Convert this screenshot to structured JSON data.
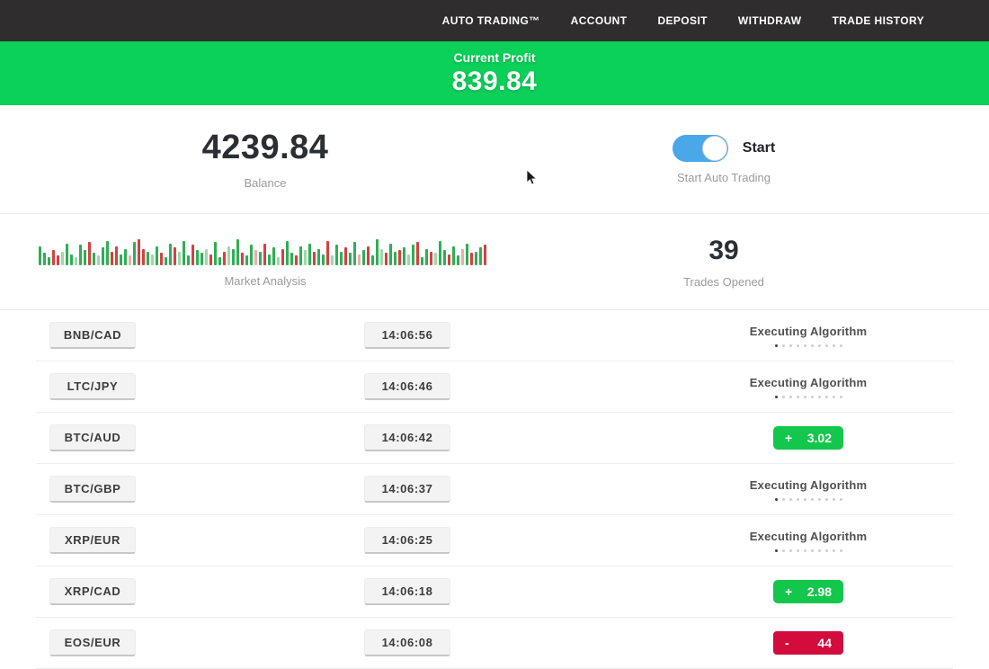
{
  "nav": {
    "items": [
      {
        "label": "AUTO TRADING™"
      },
      {
        "label": "ACCOUNT"
      },
      {
        "label": "DEPOSIT"
      },
      {
        "label": "WITHDRAW"
      },
      {
        "label": "TRADE HISTORY"
      }
    ]
  },
  "profit_banner": {
    "label": "Current Profit",
    "value": "839.84",
    "color": "#0bd05a"
  },
  "stats": {
    "balance": {
      "value": "4239.84",
      "label": "Balance"
    },
    "auto_trading": {
      "toggle_state": "on",
      "toggle_label": "Start",
      "label": "Start Auto Trading",
      "toggle_color": "#4aa7e8"
    },
    "market_analysis": {
      "label": "Market Analysis"
    },
    "trades_opened": {
      "value": "39",
      "label": "Trades Opened"
    }
  },
  "chart_data": {
    "type": "bar",
    "title": "Market Analysis",
    "description": "decorative market ticker bars, green=up red=down, relative heights 0-1",
    "colors": {
      "g": "#2fae54",
      "r": "#d44040",
      "G": "#9ed8ab",
      "R": "#eeaab2"
    },
    "bars": [
      [
        0.7,
        "g"
      ],
      [
        0.45,
        "g"
      ],
      [
        0.3,
        "g"
      ],
      [
        0.55,
        "r"
      ],
      [
        0.35,
        "r"
      ],
      [
        0.5,
        "G"
      ],
      [
        0.8,
        "g"
      ],
      [
        0.4,
        "g"
      ],
      [
        0.3,
        "G"
      ],
      [
        0.75,
        "g"
      ],
      [
        0.55,
        "g"
      ],
      [
        0.85,
        "r"
      ],
      [
        0.45,
        "g"
      ],
      [
        0.35,
        "G"
      ],
      [
        0.65,
        "g"
      ],
      [
        0.9,
        "g"
      ],
      [
        0.5,
        "r"
      ],
      [
        0.7,
        "r"
      ],
      [
        0.4,
        "g"
      ],
      [
        0.6,
        "g"
      ],
      [
        0.35,
        "R"
      ],
      [
        0.85,
        "g"
      ],
      [
        0.95,
        "r"
      ],
      [
        0.6,
        "r"
      ],
      [
        0.5,
        "g"
      ],
      [
        0.4,
        "G"
      ],
      [
        0.7,
        "g"
      ],
      [
        0.45,
        "r"
      ],
      [
        0.3,
        "g"
      ],
      [
        0.8,
        "g"
      ],
      [
        0.65,
        "r"
      ],
      [
        0.5,
        "G"
      ],
      [
        0.9,
        "g"
      ],
      [
        0.35,
        "g"
      ],
      [
        0.75,
        "r"
      ],
      [
        0.55,
        "g"
      ],
      [
        0.45,
        "g"
      ],
      [
        0.6,
        "G"
      ],
      [
        0.4,
        "r"
      ],
      [
        0.85,
        "g"
      ],
      [
        0.3,
        "g"
      ],
      [
        0.5,
        "r"
      ],
      [
        0.7,
        "G"
      ],
      [
        0.6,
        "g"
      ],
      [
        0.95,
        "g"
      ],
      [
        0.45,
        "r"
      ],
      [
        0.35,
        "g"
      ],
      [
        0.75,
        "g"
      ],
      [
        0.55,
        "R"
      ],
      [
        0.5,
        "g"
      ],
      [
        0.8,
        "r"
      ],
      [
        0.4,
        "g"
      ],
      [
        0.65,
        "g"
      ],
      [
        0.3,
        "G"
      ],
      [
        0.6,
        "r"
      ],
      [
        0.9,
        "g"
      ],
      [
        0.45,
        "g"
      ],
      [
        0.35,
        "r"
      ],
      [
        0.7,
        "g"
      ],
      [
        0.55,
        "G"
      ],
      [
        0.8,
        "g"
      ],
      [
        0.5,
        "r"
      ],
      [
        0.6,
        "g"
      ],
      [
        0.4,
        "g"
      ],
      [
        0.9,
        "r"
      ],
      [
        0.35,
        "G"
      ],
      [
        0.75,
        "g"
      ],
      [
        0.5,
        "g"
      ],
      [
        0.65,
        "r"
      ],
      [
        0.45,
        "g"
      ],
      [
        0.85,
        "g"
      ],
      [
        0.4,
        "R"
      ],
      [
        0.55,
        "g"
      ],
      [
        0.7,
        "r"
      ],
      [
        0.35,
        "g"
      ],
      [
        0.95,
        "g"
      ],
      [
        0.6,
        "G"
      ],
      [
        0.45,
        "r"
      ],
      [
        0.8,
        "g"
      ],
      [
        0.5,
        "g"
      ],
      [
        0.55,
        "r"
      ],
      [
        0.65,
        "g"
      ],
      [
        0.4,
        "G"
      ],
      [
        0.75,
        "g"
      ],
      [
        0.85,
        "r"
      ],
      [
        0.3,
        "g"
      ],
      [
        0.6,
        "g"
      ],
      [
        0.5,
        "r"
      ],
      [
        0.45,
        "G"
      ],
      [
        0.9,
        "g"
      ],
      [
        0.55,
        "g"
      ],
      [
        0.4,
        "r"
      ],
      [
        0.7,
        "g"
      ],
      [
        0.35,
        "g"
      ],
      [
        0.6,
        "R"
      ],
      [
        0.8,
        "g"
      ],
      [
        0.45,
        "r"
      ],
      [
        0.5,
        "g"
      ],
      [
        0.65,
        "g"
      ],
      [
        0.75,
        "r"
      ]
    ]
  },
  "trades": [
    {
      "pair": "BNB/CAD",
      "time": "14:06:56",
      "status": "executing",
      "status_label": "Executing Algorithm"
    },
    {
      "pair": "LTC/JPY",
      "time": "14:06:46",
      "status": "executing",
      "status_label": "Executing Algorithm"
    },
    {
      "pair": "BTC/AUD",
      "time": "14:06:42",
      "status": "profit",
      "sign": "+",
      "result": "3.02"
    },
    {
      "pair": "BTC/GBP",
      "time": "14:06:37",
      "status": "executing",
      "status_label": "Executing Algorithm"
    },
    {
      "pair": "XRP/EUR",
      "time": "14:06:25",
      "status": "executing",
      "status_label": "Executing Algorithm"
    },
    {
      "pair": "XRP/CAD",
      "time": "14:06:18",
      "status": "profit",
      "sign": "+",
      "result": "2.98"
    },
    {
      "pair": "EOS/EUR",
      "time": "14:06:08",
      "status": "loss",
      "sign": "-",
      "result": "44"
    }
  ]
}
